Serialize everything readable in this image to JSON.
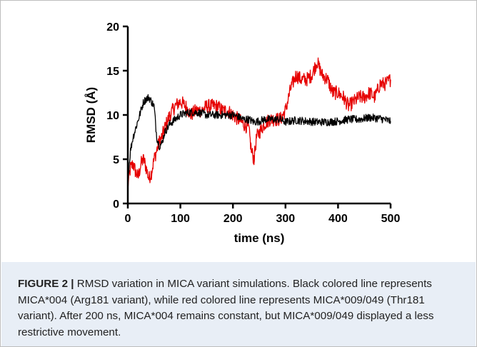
{
  "chart_data": {
    "type": "line",
    "xlabel": "time (ns)",
    "ylabel": "RMSD (Å)",
    "xlim": [
      0,
      500
    ],
    "ylim": [
      0,
      20
    ],
    "x_ticks": [
      0,
      100,
      200,
      300,
      400,
      500
    ],
    "y_ticks": [
      0,
      5,
      10,
      15,
      20
    ],
    "grid": false,
    "legend": "none",
    "series": [
      {
        "color": "#000000",
        "x": [
          0,
          5,
          10,
          15,
          20,
          25,
          30,
          35,
          40,
          45,
          50,
          55,
          60,
          65,
          70,
          80,
          90,
          100,
          110,
          120,
          130,
          140,
          150,
          160,
          170,
          180,
          190,
          200,
          210,
          220,
          230,
          240,
          250,
          260,
          270,
          280,
          290,
          300,
          320,
          340,
          360,
          380,
          400,
          420,
          440,
          460,
          480,
          500
        ],
        "y": [
          2.5,
          6.0,
          7.5,
          8.5,
          9.5,
          10.5,
          11.5,
          11.8,
          12.0,
          11.5,
          11.0,
          7.5,
          6.5,
          6.8,
          8.0,
          9.0,
          9.5,
          10.0,
          10.2,
          10.3,
          10.3,
          10.2,
          10.0,
          10.0,
          10.0,
          10.0,
          10.0,
          10.0,
          9.8,
          9.5,
          9.5,
          9.2,
          9.3,
          9.5,
          9.5,
          9.5,
          9.5,
          9.2,
          9.4,
          9.3,
          9.2,
          9.2,
          9.3,
          9.5,
          9.5,
          9.7,
          9.6,
          9.3
        ]
      },
      {
        "color": "#e60000",
        "x": [
          0,
          5,
          10,
          15,
          20,
          25,
          30,
          35,
          40,
          45,
          50,
          55,
          60,
          65,
          70,
          80,
          90,
          100,
          110,
          120,
          130,
          140,
          150,
          160,
          170,
          180,
          190,
          200,
          210,
          220,
          230,
          235,
          240,
          245,
          250,
          260,
          270,
          280,
          290,
          300,
          310,
          320,
          330,
          340,
          350,
          360,
          370,
          380,
          390,
          400,
          410,
          420,
          430,
          440,
          450,
          460,
          470,
          480,
          490,
          500
        ],
        "y": [
          2.0,
          4.0,
          4.5,
          3.5,
          3.0,
          4.5,
          5.0,
          4.0,
          2.8,
          3.5,
          5.0,
          6.0,
          7.0,
          7.5,
          8.5,
          10.0,
          11.0,
          11.5,
          11.0,
          10.0,
          10.5,
          10.5,
          11.0,
          11.0,
          11.0,
          10.5,
          10.5,
          10.0,
          9.5,
          9.0,
          8.5,
          6.0,
          5.0,
          7.5,
          8.0,
          9.0,
          9.5,
          9.5,
          9.5,
          10.5,
          13.0,
          14.5,
          14.0,
          14.0,
          14.5,
          16.0,
          14.5,
          14.0,
          12.5,
          12.5,
          12.0,
          11.0,
          11.5,
          12.0,
          12.0,
          12.5,
          12.0,
          13.5,
          13.5,
          14.0
        ]
      }
    ]
  },
  "caption": {
    "label": "FIGURE 2 |",
    "text": " RMSD variation in MICA variant simulations. Black colored line represents MICA*004 (Arg181 variant), while red colored line represents MICA*009/049 (Thr181 variant). After 200 ns, MICA*004 remains constant, but MICA*009/049 displayed a less restrictive movement."
  }
}
